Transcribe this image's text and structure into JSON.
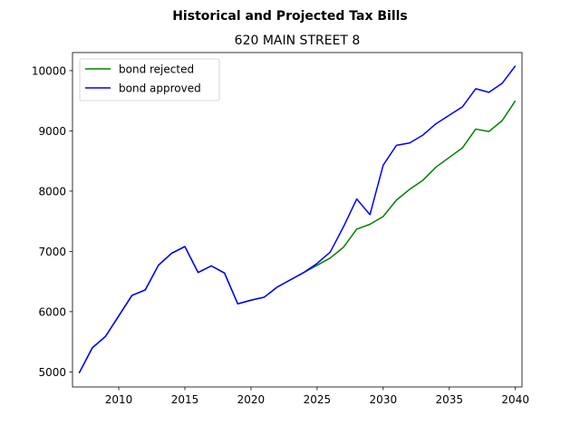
{
  "chart_data": {
    "type": "line",
    "title": "Historical and Projected Tax Bills",
    "subtitle": "620 MAIN STREET  8",
    "xlabel": "",
    "ylabel": "",
    "xlim": [
      2006.5,
      2040.5
    ],
    "ylim": [
      4750,
      10300
    ],
    "xticks": [
      2010,
      2015,
      2020,
      2025,
      2030,
      2035,
      2040
    ],
    "yticks": [
      5000,
      6000,
      7000,
      8000,
      9000,
      10000
    ],
    "grid": false,
    "legend_position": "top-left",
    "x": [
      2007,
      2008,
      2009,
      2010,
      2011,
      2012,
      2013,
      2014,
      2015,
      2016,
      2017,
      2018,
      2019,
      2020,
      2021,
      2022,
      2023,
      2024,
      2025,
      2026,
      2027,
      2028,
      2029,
      2030,
      2031,
      2032,
      2033,
      2034,
      2035,
      2036,
      2037,
      2038,
      2039,
      2040
    ],
    "series": [
      {
        "name": "bond rejected",
        "color": "#008000",
        "values": [
          4980,
          5400,
          5590,
          5930,
          6270,
          6360,
          6770,
          6970,
          7080,
          6650,
          6760,
          6640,
          6130,
          6190,
          6240,
          6410,
          6530,
          6650,
          6770,
          6890,
          7070,
          7370,
          7450,
          7580,
          7850,
          8030,
          8180,
          8400,
          8560,
          8720,
          9030,
          8990,
          9170,
          9500
        ]
      },
      {
        "name": "bond approved",
        "color": "#0000ff",
        "values": [
          4980,
          5400,
          5590,
          5930,
          6270,
          6360,
          6770,
          6970,
          7080,
          6650,
          6760,
          6640,
          6130,
          6190,
          6240,
          6410,
          6530,
          6650,
          6800,
          6990,
          7410,
          7870,
          7610,
          8430,
          8760,
          8800,
          8930,
          9120,
          9260,
          9400,
          9700,
          9640,
          9790,
          10080
        ]
      }
    ]
  }
}
